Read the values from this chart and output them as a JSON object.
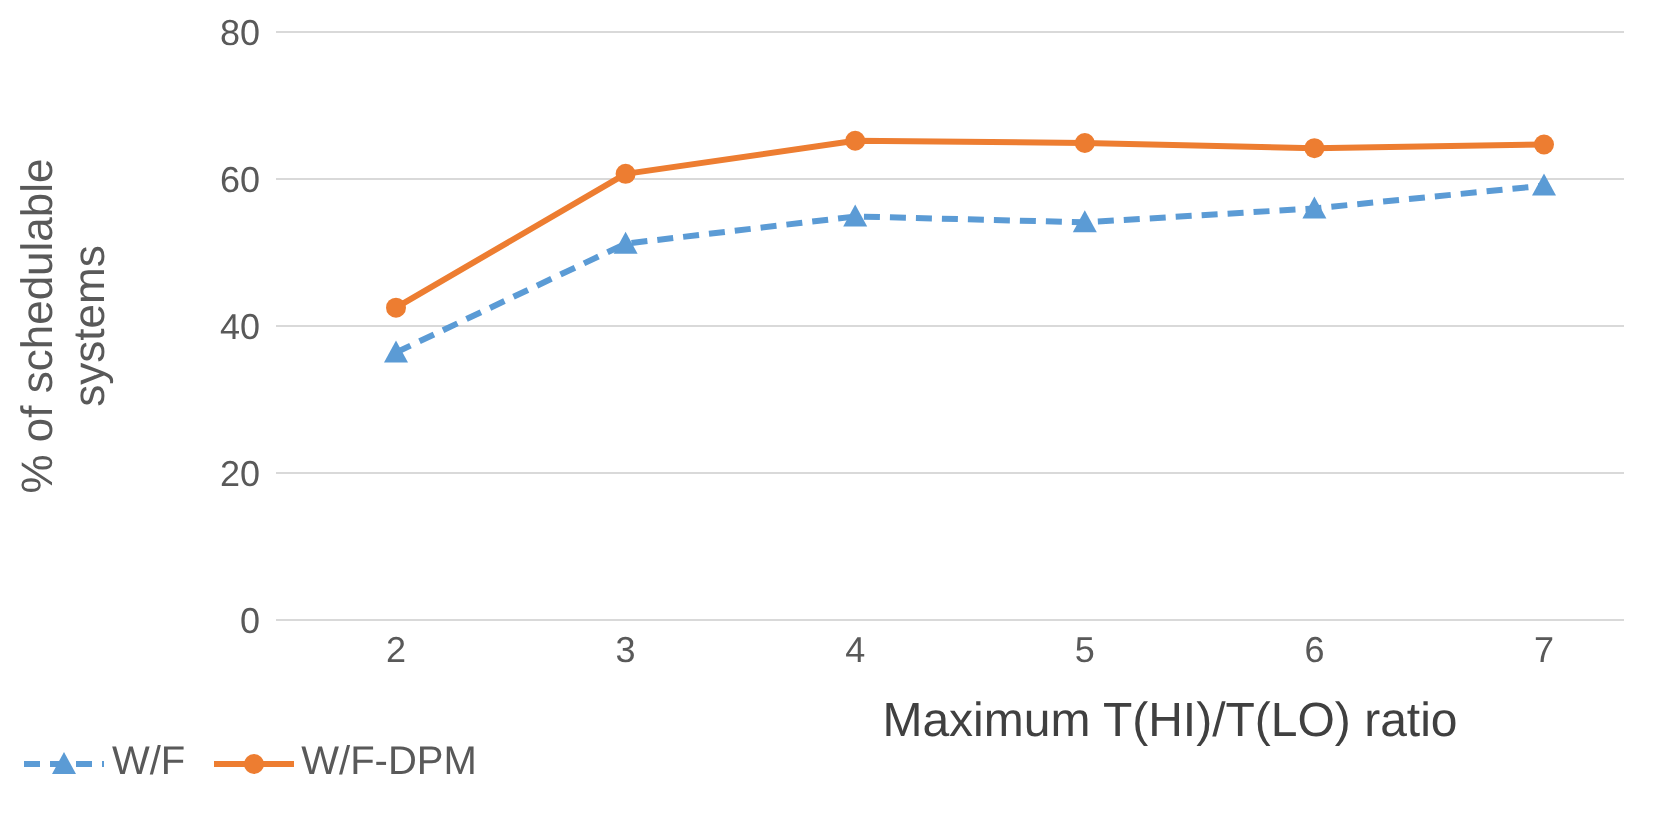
{
  "chart_data": {
    "type": "line",
    "xlabel": "Maximum T(HI)/T(LO) ratio",
    "ylabel": "% of schedulable systems",
    "categories": [
      "2",
      "3",
      "4",
      "5",
      "6",
      "7"
    ],
    "series": [
      {
        "name": "W/F",
        "color": "#5b9bd5",
        "values": [
          36.4,
          51.2,
          54.9,
          54.1,
          56,
          59.1
        ],
        "marker": "triangle",
        "line_style": "dashed"
      },
      {
        "name": "W/F-DPM",
        "color": "#ed7d31",
        "values": [
          42.5,
          60.7,
          65.2,
          64.9,
          64.2,
          64.7
        ],
        "marker": "circle",
        "line_style": "solid"
      }
    ],
    "ylim": [
      0,
      80
    ],
    "yticks": [
      0,
      20,
      40,
      60,
      80
    ],
    "grid": "y",
    "legend": "bottom left"
  }
}
